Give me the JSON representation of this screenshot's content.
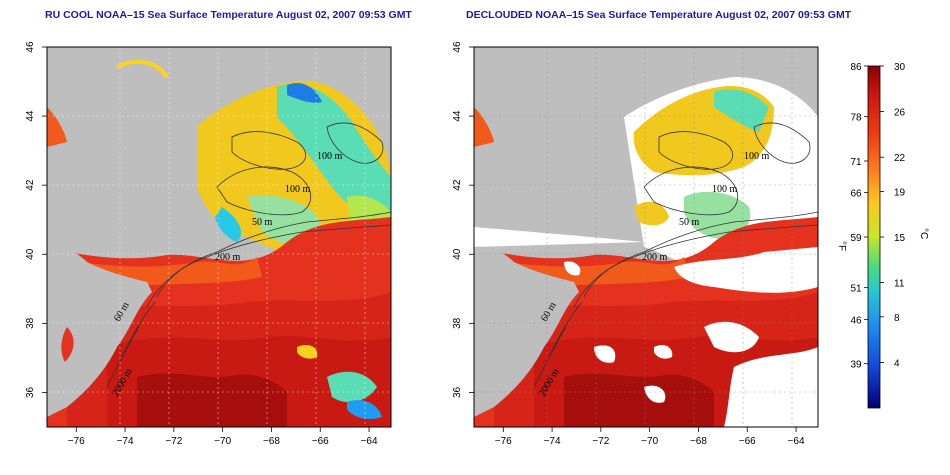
{
  "left_panel": {
    "title": "RU COOL NOAA–15 Sea Surface Temperature August 02, 2007 09:53 GMT"
  },
  "right_panel": {
    "title": "DECLOUDED NOAA–15 Sea Surface Temperature August 02, 2007 09:53 GMT"
  },
  "axes": {
    "x_ticks": [
      "−76",
      "−74",
      "−72",
      "−70",
      "−68",
      "−66",
      "−64"
    ],
    "y_ticks": [
      "36",
      "38",
      "40",
      "42",
      "44",
      "46"
    ],
    "x_values": [
      -76,
      -74,
      -72,
      -70,
      -68,
      -66,
      -64
    ],
    "y_values": [
      36,
      38,
      40,
      42,
      44,
      46
    ],
    "lon_range": [
      -77.2,
      -63.1
    ],
    "lat_range": [
      35.0,
      46.0
    ]
  },
  "contour_labels": [
    "100 m",
    "100 m",
    "50 m",
    "200 m",
    "60 m",
    "2000 m"
  ],
  "colorbar": {
    "fahrenheit_label": "°F",
    "celsius_label": "°C",
    "fahrenheit_ticks": [
      "86",
      "78",
      "71",
      "66",
      "59",
      "51",
      "46",
      "39"
    ],
    "fahrenheit_values": [
      86,
      78,
      71,
      66,
      59,
      51,
      46,
      39
    ],
    "celsius_ticks": [
      "30",
      "26",
      "22",
      "19",
      "15",
      "11",
      "8",
      "4"
    ],
    "celsius_values": [
      30,
      26,
      22,
      19,
      15,
      11,
      8,
      4
    ],
    "range_c": [
      0,
      30
    ],
    "gradient_colors": [
      "#8b0000",
      "#d21a10",
      "#f03c14",
      "#ff7a1e",
      "#ffc81e",
      "#c8e628",
      "#50dc78",
      "#28c8d2",
      "#1e8cf0",
      "#1446dc",
      "#00007a"
    ]
  },
  "colors": {
    "land": "#bebebe",
    "cloud_mask": "#ffffff",
    "warm_water": "#e4321e",
    "cool_water": "#5adcb4",
    "frame": "#000000"
  }
}
